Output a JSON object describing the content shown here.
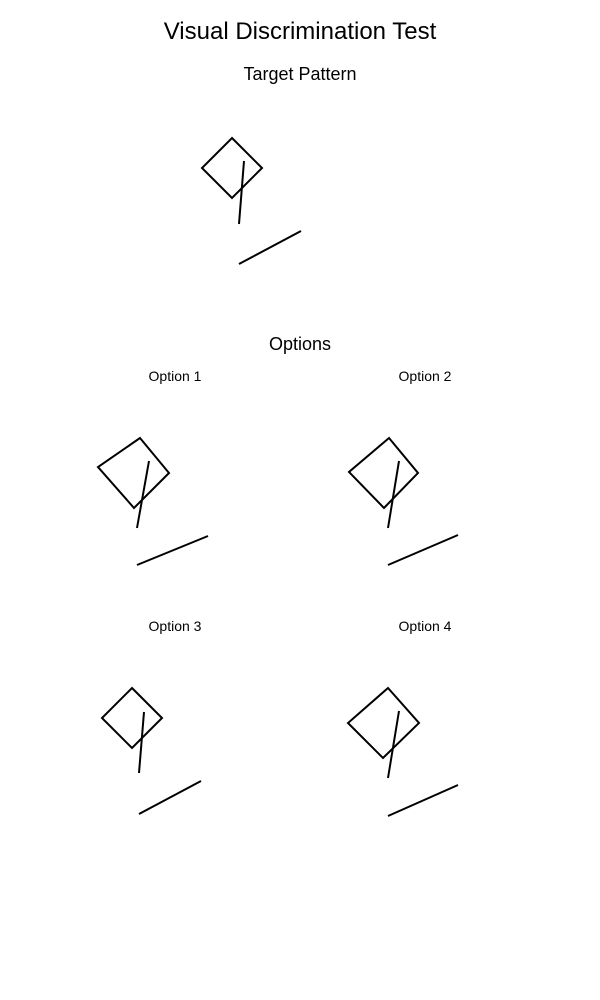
{
  "title": "Visual Discrimination Test",
  "target": {
    "heading": "Target Pattern"
  },
  "options": {
    "heading": "Options",
    "items": [
      {
        "label": "Option 1"
      },
      {
        "label": "Option 2"
      },
      {
        "label": "Option 3"
      },
      {
        "label": "Option 4"
      }
    ]
  },
  "colors": {
    "background": "#ffffff",
    "stroke": "#000000"
  }
}
